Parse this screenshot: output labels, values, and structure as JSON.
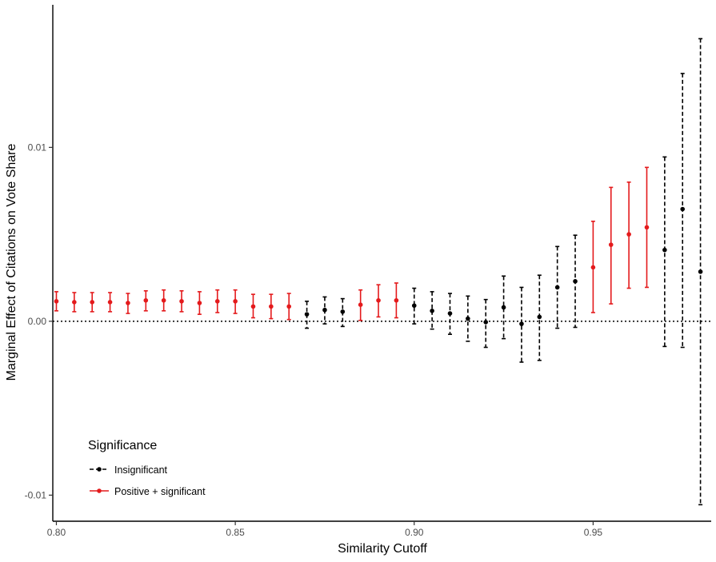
{
  "chart_data": {
    "type": "scatter",
    "xlabel": "Similarity Cutoff",
    "ylabel": "Marginal Effect of Citations on Vote Share",
    "xlim": [
      0.799,
      0.983
    ],
    "ylim": [
      -0.0115,
      0.0182
    ],
    "x_ticks": [
      {
        "value": 0.8,
        "label": "0.80"
      },
      {
        "value": 0.85,
        "label": "0.85"
      },
      {
        "value": 0.9,
        "label": "0.90"
      },
      {
        "value": 0.95,
        "label": "0.95"
      }
    ],
    "y_ticks": [
      {
        "value": -0.01,
        "label": "-0.01"
      },
      {
        "value": 0.0,
        "label": "0.00"
      },
      {
        "value": 0.01,
        "label": "0.01"
      }
    ],
    "reference_line": {
      "y": 0,
      "style": "dotted"
    },
    "grid": false,
    "legend": {
      "title": "Significance",
      "placement": "bottom-left",
      "entries": [
        {
          "key": "insig",
          "label": "Insignificant",
          "color": "#000000",
          "dash": "dashed"
        },
        {
          "key": "sig",
          "label": "Positive + significant",
          "color": "#e41a1c",
          "dash": "solid"
        }
      ]
    },
    "series": [
      {
        "name": "Positive + significant",
        "key": "sig",
        "color": "#e41a1c",
        "points": [
          {
            "x": 0.8,
            "y": 0.00115,
            "lo": 0.0006,
            "hi": 0.0017
          },
          {
            "x": 0.805,
            "y": 0.0011,
            "lo": 0.00055,
            "hi": 0.00165
          },
          {
            "x": 0.81,
            "y": 0.0011,
            "lo": 0.00055,
            "hi": 0.00165
          },
          {
            "x": 0.815,
            "y": 0.0011,
            "lo": 0.00055,
            "hi": 0.00165
          },
          {
            "x": 0.82,
            "y": 0.00105,
            "lo": 0.00045,
            "hi": 0.0016
          },
          {
            "x": 0.825,
            "y": 0.0012,
            "lo": 0.0006,
            "hi": 0.00175
          },
          {
            "x": 0.83,
            "y": 0.0012,
            "lo": 0.0006,
            "hi": 0.0018
          },
          {
            "x": 0.835,
            "y": 0.00115,
            "lo": 0.00055,
            "hi": 0.00175
          },
          {
            "x": 0.84,
            "y": 0.00105,
            "lo": 0.0004,
            "hi": 0.0017
          },
          {
            "x": 0.845,
            "y": 0.00115,
            "lo": 0.0005,
            "hi": 0.0018
          },
          {
            "x": 0.85,
            "y": 0.00115,
            "lo": 0.00045,
            "hi": 0.0018
          },
          {
            "x": 0.855,
            "y": 0.00085,
            "lo": 0.0002,
            "hi": 0.00155
          },
          {
            "x": 0.86,
            "y": 0.00085,
            "lo": 0.00015,
            "hi": 0.00155
          },
          {
            "x": 0.865,
            "y": 0.00085,
            "lo": 0.0001,
            "hi": 0.0016
          },
          {
            "x": 0.885,
            "y": 0.00095,
            "lo": 5e-05,
            "hi": 0.0018
          },
          {
            "x": 0.89,
            "y": 0.0012,
            "lo": 0.00025,
            "hi": 0.0021
          },
          {
            "x": 0.895,
            "y": 0.0012,
            "lo": 0.0002,
            "hi": 0.0022
          },
          {
            "x": 0.95,
            "y": 0.0031,
            "lo": 0.0005,
            "hi": 0.00575
          },
          {
            "x": 0.955,
            "y": 0.0044,
            "lo": 0.001,
            "hi": 0.0077
          },
          {
            "x": 0.96,
            "y": 0.005,
            "lo": 0.0019,
            "hi": 0.008
          },
          {
            "x": 0.965,
            "y": 0.0054,
            "lo": 0.00195,
            "hi": 0.00885
          }
        ]
      },
      {
        "name": "Insignificant",
        "key": "insig",
        "color": "#000000",
        "points": [
          {
            "x": 0.87,
            "y": 0.0004,
            "lo": -0.0004,
            "hi": 0.00115
          },
          {
            "x": 0.875,
            "y": 0.00065,
            "lo": -0.00015,
            "hi": 0.0014
          },
          {
            "x": 0.88,
            "y": 0.00055,
            "lo": -0.0003,
            "hi": 0.0013
          },
          {
            "x": 0.9,
            "y": 0.0009,
            "lo": -0.00015,
            "hi": 0.0019
          },
          {
            "x": 0.905,
            "y": 0.0006,
            "lo": -0.00045,
            "hi": 0.0017
          },
          {
            "x": 0.91,
            "y": 0.00045,
            "lo": -0.00075,
            "hi": 0.0016
          },
          {
            "x": 0.915,
            "y": 0.00015,
            "lo": -0.00115,
            "hi": 0.00145
          },
          {
            "x": 0.92,
            "y": -5e-05,
            "lo": -0.0015,
            "hi": 0.00125
          },
          {
            "x": 0.925,
            "y": 0.0008,
            "lo": -0.001,
            "hi": 0.0026
          },
          {
            "x": 0.93,
            "y": -0.00015,
            "lo": -0.00235,
            "hi": 0.00195
          },
          {
            "x": 0.935,
            "y": 0.00025,
            "lo": -0.00225,
            "hi": 0.00265
          },
          {
            "x": 0.94,
            "y": 0.00195,
            "lo": -0.0004,
            "hi": 0.0043
          },
          {
            "x": 0.945,
            "y": 0.0023,
            "lo": -0.00035,
            "hi": 0.00495
          },
          {
            "x": 0.97,
            "y": 0.0041,
            "lo": -0.00145,
            "hi": 0.00945
          },
          {
            "x": 0.975,
            "y": 0.00645,
            "lo": -0.0015,
            "hi": 0.01425
          },
          {
            "x": 0.98,
            "y": 0.00285,
            "lo": -0.01055,
            "hi": 0.01625
          }
        ]
      }
    ]
  }
}
